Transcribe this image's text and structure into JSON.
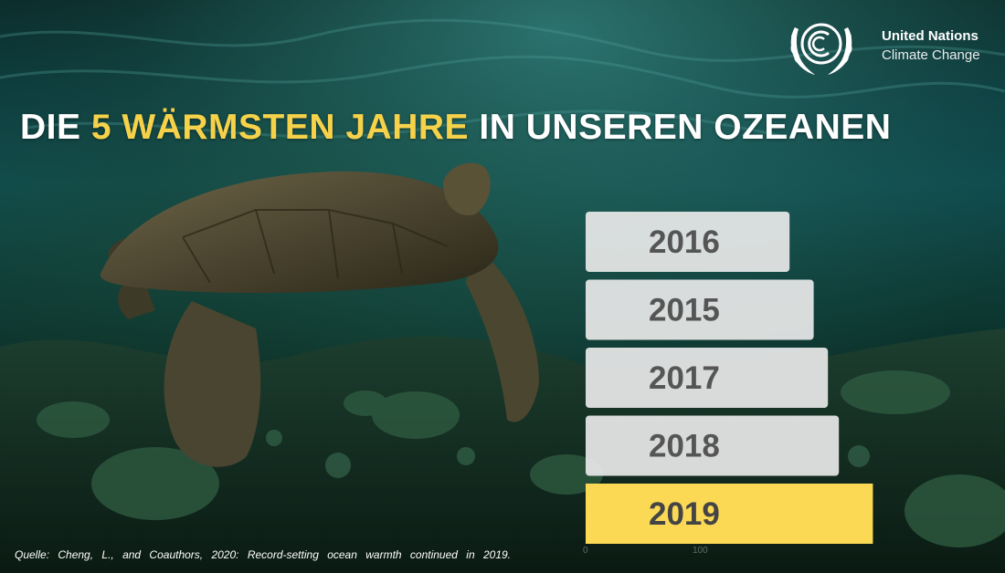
{
  "title": {
    "prefix": "DIE ",
    "highlight": "5 WÄRMSTEN JAHRE",
    "suffix": " IN UNSEREN OZEANEN"
  },
  "logo": {
    "line1": "United Nations",
    "line2": "Climate Change",
    "icon": "unfccc-laurel-emblem-icon"
  },
  "colors": {
    "highlight_text": "#f5d24a",
    "highlight_bar": "#fbd955",
    "bar": "#e9e9e9",
    "bar_label": "#555555"
  },
  "chart_data": {
    "type": "bar",
    "orientation": "horizontal",
    "categories": [
      "2016",
      "2015",
      "2017",
      "2018",
      "2019"
    ],
    "values": [
      186,
      208,
      221,
      231,
      262
    ],
    "highlight_category": "2019",
    "xlim": [
      0,
      262
    ],
    "x_ticks": [
      "0",
      "100"
    ],
    "title": "",
    "xlabel": "",
    "ylabel": "",
    "grid": false,
    "legend": "none"
  },
  "source": "Quelle: Cheng, L., and Coauthors, 2020: Record-setting ocean warmth continued in 2019."
}
